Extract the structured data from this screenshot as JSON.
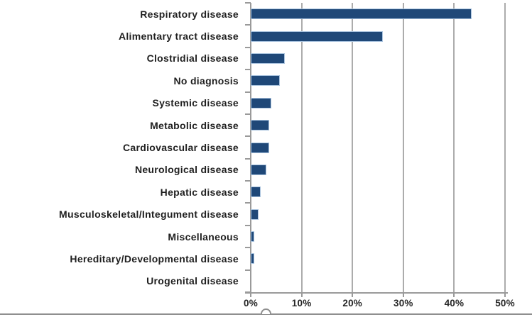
{
  "chart_data": {
    "type": "bar",
    "orientation": "horizontal",
    "title": "",
    "categories": [
      "Respiratory disease",
      "Alimentary tract disease",
      "Clostridial disease",
      "No diagnosis",
      "Systemic disease",
      "Metabolic disease",
      "Cardiovascular disease",
      "Neurological disease",
      "Hepatic disease",
      "Musculoskeletal/Integument disease",
      "Miscellaneous",
      "Hereditary/Developmental disease",
      "Urogenital disease"
    ],
    "values": [
      43.5,
      26,
      6.7,
      5.7,
      4.1,
      3.7,
      3.7,
      3.1,
      2.0,
      1.5,
      0.7,
      0.7,
      0
    ],
    "value_unit": "%",
    "xlim": [
      0,
      50
    ],
    "x_tick_step": 10,
    "x_tick_labels": [
      "0%",
      "10%",
      "20%",
      "30%",
      "40%",
      "50%"
    ],
    "grid": true,
    "legend": false,
    "colors": {
      "bar_fill": "#1F4878",
      "bar_border": "#A9C3DE",
      "gridline": "#ACACAC",
      "axis": "#9A9A9A",
      "label_text": "#1F1F1F",
      "tick_text": "#262626"
    }
  }
}
